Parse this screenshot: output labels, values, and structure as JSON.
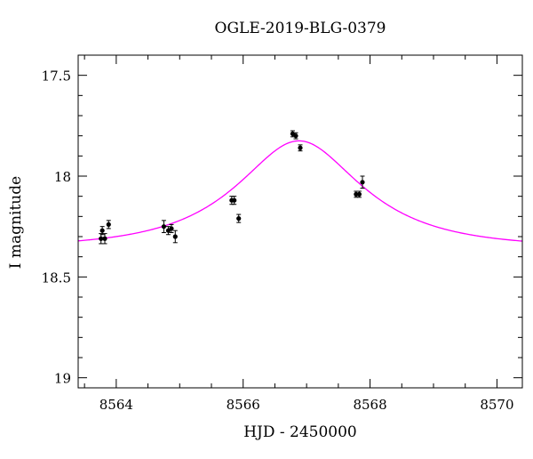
{
  "chart_data": {
    "type": "scatter",
    "title": "OGLE-2019-BLG-0379",
    "xlabel": "HJD - 2450000",
    "ylabel": "I magnitude",
    "xlim": [
      8563.4,
      8570.4
    ],
    "ylim": [
      17.4,
      19.05
    ],
    "y_inverted": true,
    "grid": false,
    "x_ticks": [
      8564,
      8566,
      8568,
      8570
    ],
    "x_tick_labels": [
      "8564",
      "8566",
      "8568",
      "8570"
    ],
    "y_ticks": [
      17.5,
      18,
      18.5,
      19
    ],
    "y_tick_labels": [
      "17.5",
      "18",
      "18.5",
      "19"
    ],
    "colors": {
      "points": "#000000",
      "model": "#ff00ff"
    },
    "series": [
      {
        "kind": "points",
        "x": [
          8563.76,
          8563.78,
          8563.82,
          8563.88,
          8564.75,
          8564.82,
          8564.87,
          8564.93,
          8565.82,
          8565.86,
          8565.93,
          8566.78,
          8566.83,
          8566.9,
          8567.78,
          8567.83,
          8567.88
        ],
        "y": [
          18.31,
          18.27,
          18.31,
          18.24,
          18.25,
          18.27,
          18.26,
          18.3,
          18.12,
          18.12,
          18.21,
          17.79,
          17.8,
          17.86,
          18.09,
          18.09,
          18.03
        ],
        "err": [
          0.025,
          0.02,
          0.025,
          0.02,
          0.03,
          0.02,
          0.02,
          0.03,
          0.02,
          0.02,
          0.02,
          0.015,
          0.015,
          0.015,
          0.015,
          0.015,
          0.03
        ]
      },
      {
        "kind": "model",
        "baseline": 18.355,
        "peak_mag": 17.825,
        "t0": 8566.88,
        "tE": 1.7,
        "u0": 0.55
      }
    ]
  }
}
